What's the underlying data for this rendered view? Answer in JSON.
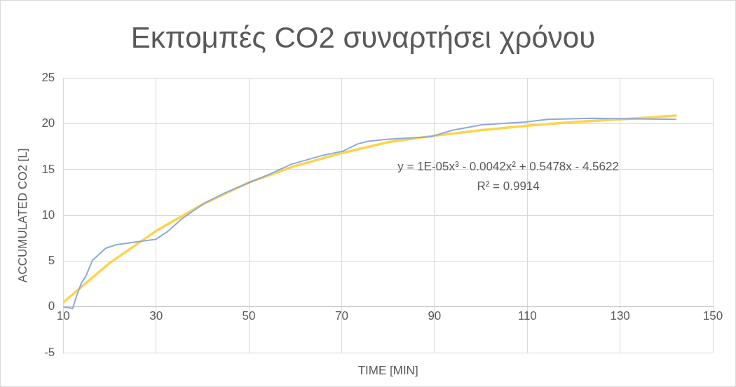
{
  "chart_data": {
    "type": "line",
    "title": "Εκπομπές CO2 συναρτήσει χρόνου",
    "xlabel": "TIME [MIN]",
    "ylabel": "ACCUMULATED CO2 [L]",
    "xlim": [
      10,
      150
    ],
    "xticks": [
      10,
      30,
      50,
      70,
      90,
      110,
      130,
      150
    ],
    "ylim": [
      -5,
      25
    ],
    "yticks": [
      -5,
      0,
      5,
      10,
      15,
      20,
      25
    ],
    "grid": true,
    "legend": false,
    "marker": "none",
    "line_style": "solid",
    "series": [
      {
        "color": "#8eaadb",
        "x": [
          10,
          11.4,
          12,
          12.8,
          13.9,
          14.9,
          16.3,
          19.1,
          21.4,
          30,
          32.4,
          35.5,
          40.3,
          45,
          49.7,
          54.5,
          59.2,
          65.5,
          70.2,
          73.4,
          75.7,
          79.7,
          89.2,
          93.9,
          100.2,
          109.6,
          114.4,
          123.8,
          142
        ],
        "values": [
          0,
          -0.1,
          -0.2,
          1.1,
          2.6,
          3.4,
          5.1,
          6.4,
          6.8,
          7.4,
          8.2,
          9.6,
          11.3,
          12.5,
          13.5,
          14.5,
          15.6,
          16.5,
          17,
          17.8,
          18.1,
          18.3,
          18.6,
          19.3,
          19.9,
          20.2,
          20.5,
          20.6,
          20.5
        ]
      },
      {
        "type": "line",
        "color": "#ffd34d",
        "x": [
          10,
          20,
          30,
          40,
          50,
          60,
          70,
          80,
          90,
          100,
          110,
          120,
          130,
          142
        ],
        "values": [
          0.5,
          4.8,
          8.3,
          11.2,
          13.6,
          15.4,
          16.8,
          18,
          18.7,
          19.3,
          19.8,
          20.2,
          20.5,
          20.9
        ]
      }
    ],
    "annotations": [
      "y = 1E-05x³ - 0.0042x² + 0.5478x - 4.5622",
      "R² = 0.9914"
    ]
  }
}
